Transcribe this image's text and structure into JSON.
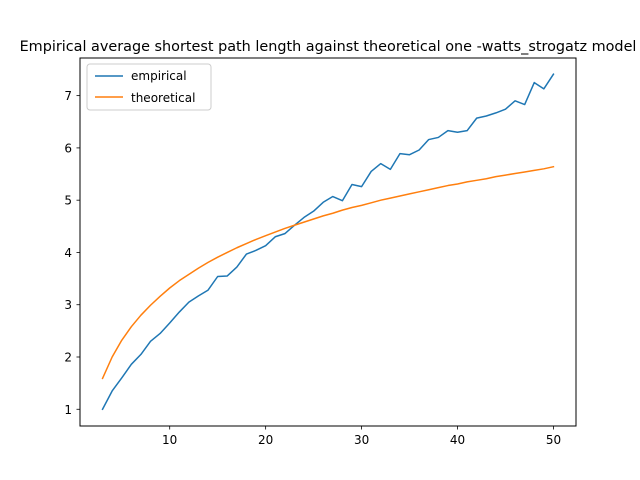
{
  "chart_data": {
    "type": "line",
    "title": "Empirical average shortest path length against theoretical one -watts_strogatz model",
    "xlabel": "",
    "ylabel": "",
    "xlim": [
      0.65,
      52.35
    ],
    "ylim": [
      0.68,
      7.72
    ],
    "xticks": [
      10,
      20,
      30,
      40,
      50
    ],
    "yticks": [
      1,
      2,
      3,
      4,
      5,
      6,
      7
    ],
    "grid": false,
    "legend": {
      "position": "top-left",
      "entries": [
        "empirical",
        "theoretical"
      ]
    },
    "x": [
      3,
      4,
      5,
      6,
      7,
      8,
      9,
      10,
      11,
      12,
      13,
      14,
      15,
      16,
      17,
      18,
      19,
      20,
      21,
      22,
      23,
      24,
      25,
      26,
      27,
      28,
      29,
      30,
      31,
      32,
      33,
      34,
      35,
      36,
      37,
      38,
      39,
      40,
      41,
      42,
      43,
      44,
      45,
      46,
      47,
      48,
      49,
      50
    ],
    "series": [
      {
        "name": "empirical",
        "color": "#1f77b4",
        "values": [
          1.0,
          1.35,
          1.6,
          1.86,
          2.05,
          2.3,
          2.45,
          2.65,
          2.86,
          3.05,
          3.17,
          3.28,
          3.54,
          3.55,
          3.72,
          3.97,
          4.04,
          4.13,
          4.3,
          4.36,
          4.52,
          4.67,
          4.79,
          4.96,
          5.07,
          4.99,
          5.3,
          5.26,
          5.55,
          5.7,
          5.59,
          5.89,
          5.87,
          5.96,
          6.16,
          6.2,
          6.33,
          6.3,
          6.33,
          6.57,
          6.61,
          6.67,
          6.74,
          6.9,
          6.83,
          7.25,
          7.13,
          7.41
        ]
      },
      {
        "name": "theoretical",
        "color": "#ff7f0e",
        "values": [
          1.59,
          2.0,
          2.32,
          2.58,
          2.8,
          2.99,
          3.16,
          3.32,
          3.46,
          3.58,
          3.7,
          3.81,
          3.91,
          4.0,
          4.09,
          4.17,
          4.25,
          4.32,
          4.39,
          4.46,
          4.52,
          4.58,
          4.64,
          4.7,
          4.75,
          4.81,
          4.86,
          4.9,
          4.95,
          5.0,
          5.04,
          5.08,
          5.12,
          5.16,
          5.2,
          5.24,
          5.28,
          5.31,
          5.35,
          5.38,
          5.41,
          5.45,
          5.48,
          5.51,
          5.54,
          5.57,
          5.6,
          5.64
        ]
      }
    ]
  }
}
